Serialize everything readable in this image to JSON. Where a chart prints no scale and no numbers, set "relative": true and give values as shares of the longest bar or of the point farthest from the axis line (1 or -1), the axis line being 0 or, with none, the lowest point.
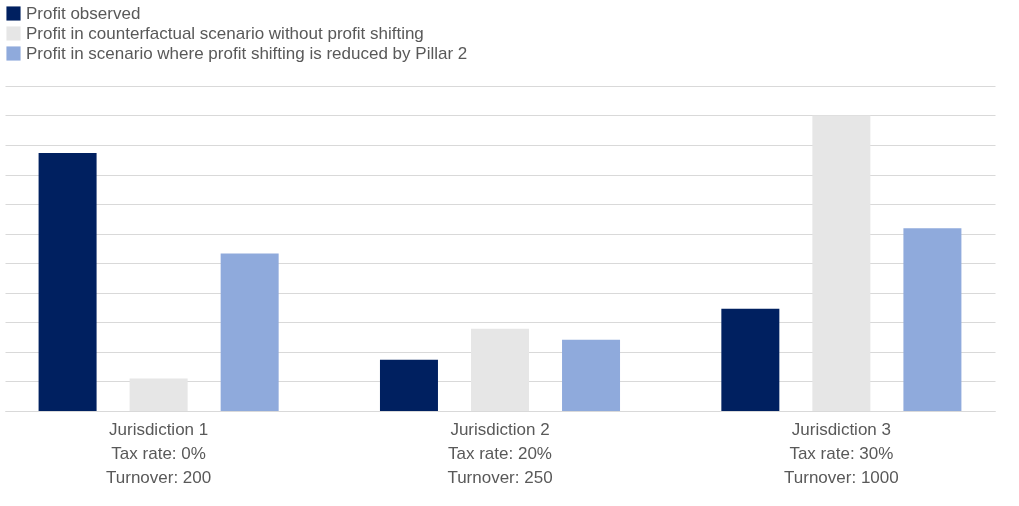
{
  "chart_data": {
    "type": "bar",
    "relative": true,
    "grid": "y",
    "legend": "top",
    "categories": [
      "Jurisdiction 1\nTax rate: 0%\nTurnover: 200",
      "Jurisdiction 2\nTax rate: 20%\nTurnover: 250",
      "Jurisdiction 3\nTax rate: 30%\nTurnover: 1000"
    ],
    "series": [
      {
        "name": "Profit observed",
        "color": "#002060",
        "values": [
          0.873,
          0.173,
          0.346
        ]
      },
      {
        "name": "Profit in counterfactual scenario without profit shifting",
        "color": "#e6e6e6",
        "values": [
          0.11,
          0.278,
          1
        ]
      },
      {
        "name": "Profit in scenario where profit shifting is reduced by Pillar 2",
        "color": "#8faadc",
        "values": [
          0.533,
          0.241,
          0.618
        ]
      }
    ]
  }
}
